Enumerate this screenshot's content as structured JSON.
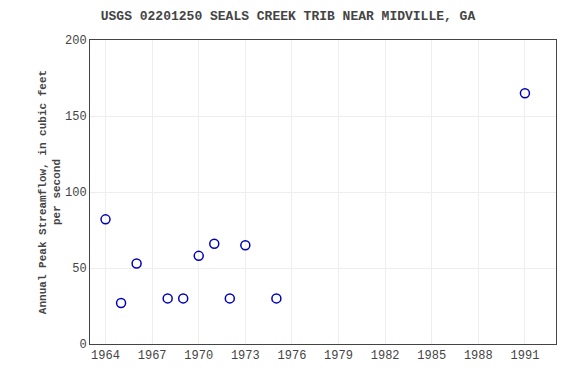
{
  "chart_data": {
    "type": "scatter",
    "title": "USGS 02201250 SEALS CREEK TRIB NEAR MIDVILLE, GA",
    "y_label": "Annual Peak Streamflow, in cubic feet\nper second",
    "x": [
      1964,
      1965,
      1966,
      1968,
      1969,
      1970,
      1971,
      1972,
      1973,
      1975,
      1991
    ],
    "values": [
      82,
      27,
      53,
      30,
      30,
      58,
      66,
      30,
      65,
      30,
      165
    ],
    "color": "#0000bb",
    "marker": "circle-open",
    "xlim": [
      1963,
      1993
    ],
    "ylim": [
      0,
      200
    ],
    "xticks": [
      1964,
      1967,
      1970,
      1973,
      1976,
      1979,
      1982,
      1985,
      1988,
      1991
    ],
    "yticks": [
      0,
      50,
      100,
      150,
      200
    ],
    "grid": true
  }
}
